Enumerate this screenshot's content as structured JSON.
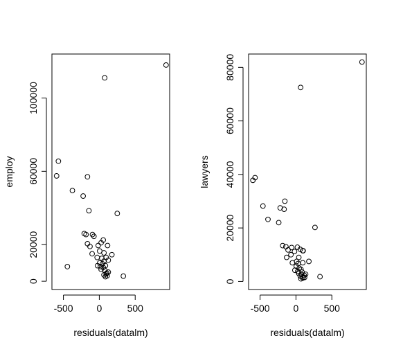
{
  "chart_data": [
    {
      "type": "scatter",
      "title": "",
      "xlabel": "residuals(datalm)",
      "ylabel": "employ",
      "xlim": [
        -660,
        980
      ],
      "ylim": [
        -4500,
        124000
      ],
      "xticks": [
        -500,
        0,
        500
      ],
      "xtick_labels": [
        "-500",
        "0",
        "500"
      ],
      "yticks": [
        0,
        20000,
        60000,
        100000
      ],
      "ytick_labels": [
        "0",
        "20000",
        "60000",
        "100000"
      ],
      "grid": false,
      "marker": "open-circle",
      "x": [
        930,
        75,
        -570,
        -595,
        -165,
        -225,
        -375,
        -145,
        250,
        -210,
        -185,
        -95,
        -75,
        55,
        25,
        -15,
        -165,
        -130,
        115,
        5,
        -100,
        175,
        65,
        95,
        125,
        -30,
        35,
        65,
        5,
        45,
        -25,
        15,
        85,
        55,
        25,
        75,
        125,
        105,
        95,
        65,
        110,
        85,
        335,
        -445
      ],
      "y": [
        118000,
        111000,
        65500,
        57500,
        57000,
        46500,
        49500,
        38500,
        37000,
        26000,
        25500,
        25500,
        24500,
        22500,
        21000,
        19500,
        20500,
        19000,
        19500,
        16500,
        15000,
        14500,
        15500,
        13000,
        11500,
        13000,
        12500,
        11000,
        10000,
        9500,
        8500,
        8000,
        8500,
        7500,
        6500,
        6000,
        5000,
        4500,
        4000,
        3500,
        3000,
        2500,
        2800,
        8000
      ]
    },
    {
      "type": "scatter",
      "title": "",
      "xlabel": "residuals(datalm)",
      "ylabel": "lawyers",
      "xlim": [
        -660,
        980
      ],
      "ylim": [
        -3000,
        85000
      ],
      "xticks": [
        -500,
        0,
        500
      ],
      "xtick_labels": [
        "-500",
        "0",
        "500"
      ],
      "yticks": [
        0,
        20000,
        40000,
        60000,
        80000
      ],
      "ytick_labels": [
        "0",
        "20000",
        "40000",
        "60000",
        "80000"
      ],
      "grid": false,
      "marker": "open-circle",
      "x": [
        920,
        65,
        -600,
        -570,
        -460,
        -390,
        -240,
        -155,
        -220,
        -165,
        265,
        20,
        100,
        -60,
        60,
        -140,
        -20,
        -110,
        95,
        -185,
        -70,
        180,
        40,
        95,
        -130,
        10,
        30,
        -50,
        5,
        45,
        70,
        -15,
        25,
        85,
        40,
        80,
        115,
        60,
        135,
        100,
        95,
        335,
        120,
        70
      ],
      "y": [
        82000,
        72500,
        37800,
        38800,
        28200,
        23200,
        22000,
        30000,
        27500,
        27000,
        20200,
        12800,
        11500,
        12700,
        12000,
        13000,
        11200,
        11800,
        11500,
        13400,
        10000,
        7500,
        9000,
        7000,
        9000,
        7500,
        6700,
        7000,
        5700,
        5000,
        4500,
        4200,
        3800,
        3500,
        3000,
        2600,
        2300,
        2000,
        2700,
        1600,
        1300,
        1800,
        1500,
        1000
      ]
    }
  ]
}
